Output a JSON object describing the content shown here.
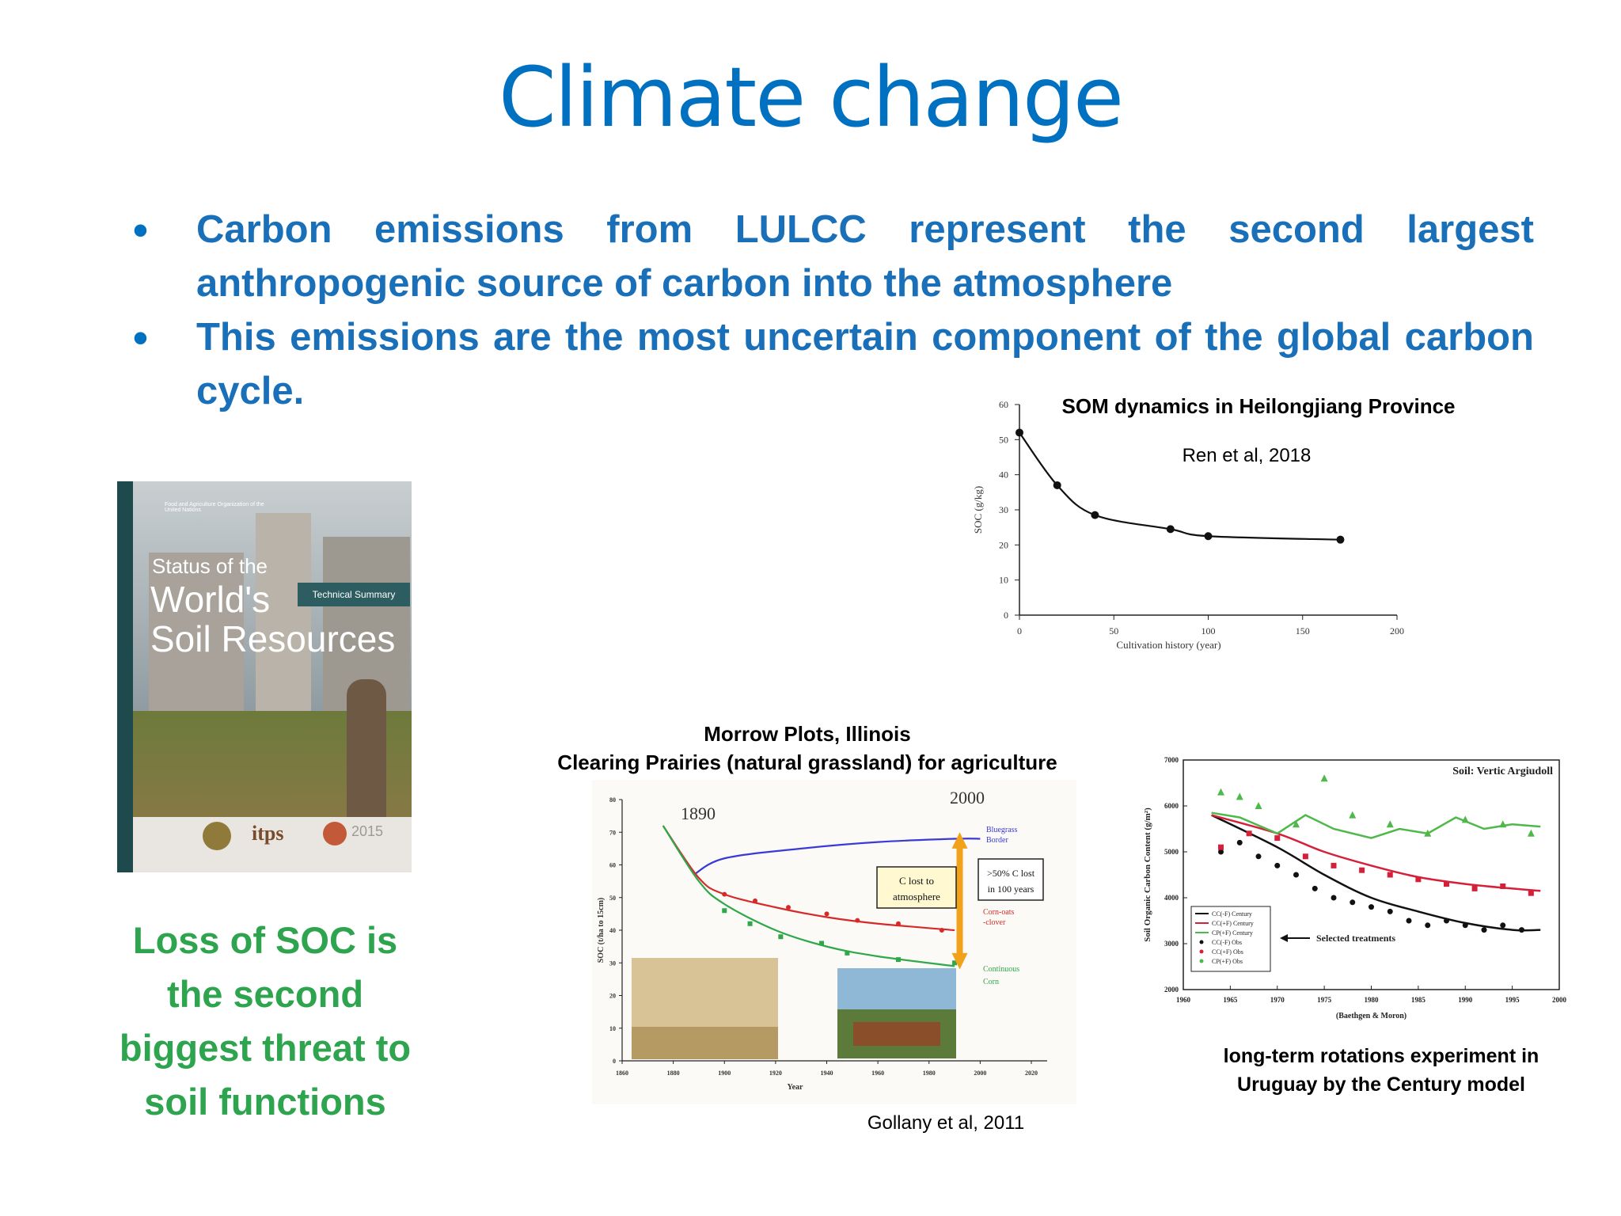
{
  "title": "Climate change",
  "bullets": [
    {
      "text": "Carbon emissions from LULCC represent the second largest anthropogenic source of carbon into the atmosphere"
    },
    {
      "text": "This emissions are the most uncertain component of the global carbon cycle."
    }
  ],
  "bullet_symbol": "•",
  "cover": {
    "org": "Food and Agriculture Organization of the United Nations",
    "line1": "Status of the",
    "line2": "World's",
    "line3": "Soil Resources",
    "badge": "Technical Summary",
    "itps": "itps",
    "year": "2015"
  },
  "green_statement": [
    "Loss of SOC is",
    "the second",
    "biggest threat to",
    "soil functions"
  ],
  "charts": {
    "som": {
      "title": "SOM dynamics in Heilongjiang Province",
      "citation": "Ren et al, 2018",
      "xlabel": "Cultivation history (year)",
      "ylabel": "SOC (g/kg)",
      "xticks": [
        "0",
        "50",
        "100",
        "150",
        "200"
      ],
      "yticks": [
        "0",
        "10",
        "20",
        "30",
        "40",
        "50",
        "60"
      ]
    },
    "morrow": {
      "title1": "Morrow Plots, Illinois",
      "title2": "Clearing Prairies (natural grassland) for agriculture",
      "citation": "Gollany et al, 2011",
      "year_left": "1890",
      "year_right": "2000",
      "box_lost": [
        "C lost to",
        "atmosphere"
      ],
      "box_pct": [
        ">50% C lost",
        "in 100 years"
      ],
      "series_labels": [
        "Bluegrass",
        "Border",
        "Corn-oats",
        "-clover",
        "Continuous",
        "Corn"
      ],
      "ylabel": "SOC (t/ha to 15cm)",
      "xlabel": "Year",
      "xticks": [
        "1860",
        "1880",
        "1900",
        "1920",
        "1940",
        "1960",
        "1980",
        "2000",
        "2020"
      ],
      "yticks": [
        "0",
        "10",
        "20",
        "30",
        "40",
        "50",
        "60",
        "70",
        "80"
      ]
    },
    "uruguay": {
      "caption1": "long-term rotations experiment in",
      "caption2": "Uruguay by the Century model",
      "soil_label": "Soil: Vertic Argiudoll",
      "selected": "Selected treatments",
      "ylabel": "Soil Organic Carbon Content (g/m²)",
      "xlabel": "(Baethgen & Moron)",
      "xticks": [
        "1960",
        "1965",
        "1970",
        "1975",
        "1980",
        "1985",
        "1990",
        "1995",
        "2000"
      ],
      "yticks": [
        "2000",
        "3000",
        "4000",
        "5000",
        "6000",
        "7000"
      ],
      "legend": [
        "CC(-F) Century",
        "CC(+F) Century",
        "CP(+F) Century",
        "CC(-F) Obs",
        "CC(+F) Obs",
        "CP(+F) Obs"
      ]
    }
  },
  "chart_data": [
    {
      "type": "line",
      "title": "SOM dynamics in Heilongjiang Province",
      "xlabel": "Cultivation history (year)",
      "ylabel": "SOC (g/kg)",
      "xlim": [
        0,
        200
      ],
      "ylim": [
        0,
        60
      ],
      "x": [
        0,
        20,
        40,
        80,
        100,
        170
      ],
      "values": [
        52,
        37,
        28.5,
        24.5,
        22.5,
        21.5
      ]
    },
    {
      "type": "line",
      "title": "Morrow Plots, Illinois",
      "xlabel": "Year",
      "ylabel": "SOC (t/ha to 15cm)",
      "xlim": [
        1860,
        2020
      ],
      "ylim": [
        0,
        80
      ],
      "series": [
        {
          "name": "Bluegrass Border",
          "x": [
            1888,
            1900,
            1930,
            1960,
            1990,
            2000
          ],
          "values": [
            57,
            62,
            65,
            67,
            68,
            68
          ]
        },
        {
          "name": "Corn-oats-clover",
          "x": [
            1876,
            1890,
            1900,
            1920,
            1940,
            1960,
            1990
          ],
          "values": [
            72,
            56,
            51,
            47,
            44,
            42,
            40
          ]
        },
        {
          "name": "Continuous Corn",
          "x": [
            1876,
            1890,
            1900,
            1920,
            1940,
            1960,
            1990
          ],
          "values": [
            72,
            55,
            48,
            40,
            35,
            32,
            29
          ]
        }
      ]
    },
    {
      "type": "line",
      "title": "Soil: Vertic Argiudoll",
      "xlabel": "(Baethgen & Moron)",
      "ylabel": "Soil Organic Carbon Content (g/m²)",
      "xlim": [
        1960,
        2000
      ],
      "ylim": [
        2000,
        7000
      ],
      "series": [
        {
          "name": "CC(-F) Century",
          "x": [
            1963,
            1970,
            1975,
            1980,
            1985,
            1990,
            1995,
            1998
          ],
          "values": [
            5800,
            5100,
            4500,
            4000,
            3700,
            3450,
            3300,
            3300
          ]
        },
        {
          "name": "CC(+F) Century",
          "x": [
            1963,
            1970,
            1975,
            1980,
            1985,
            1990,
            1995,
            1998
          ],
          "values": [
            5800,
            5400,
            5000,
            4700,
            4450,
            4300,
            4200,
            4150
          ]
        },
        {
          "name": "CP(+F) Century",
          "x": [
            1963,
            1966,
            1970,
            1973,
            1976,
            1980,
            1983,
            1986,
            1989,
            1992,
            1995,
            1998
          ],
          "values": [
            5850,
            5750,
            5400,
            5800,
            5500,
            5300,
            5500,
            5400,
            5750,
            5500,
            5600,
            5550
          ]
        }
      ]
    }
  ]
}
